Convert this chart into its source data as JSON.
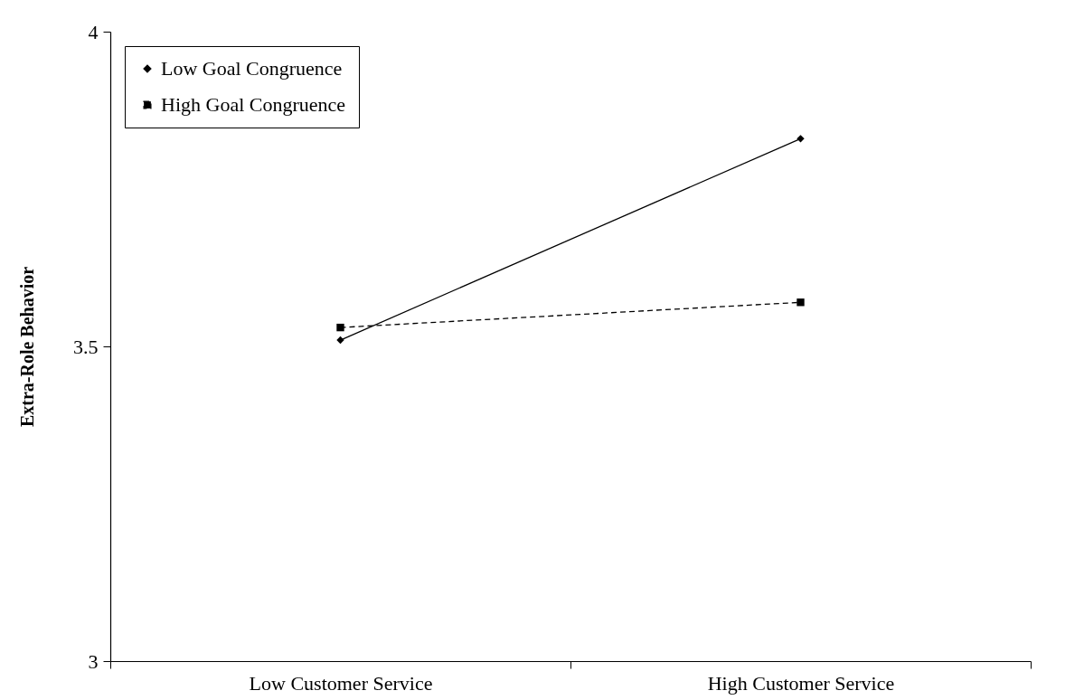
{
  "chart_data": {
    "type": "line",
    "ylabel": "Extra-Role Behavior",
    "categories": [
      "Low Customer Service",
      "High Customer Service"
    ],
    "series": [
      {
        "name": "Low Goal Congruence",
        "color": "#000000",
        "values": [
          3.51,
          3.83
        ],
        "marker": "diamond",
        "line_style": "solid"
      },
      {
        "name": "High Goal Congruence",
        "color": "#000000",
        "values": [
          3.53,
          3.57
        ],
        "marker": "square",
        "line_style": "dashed"
      }
    ],
    "ylim": [
      3,
      4
    ],
    "yticks": [
      3,
      3.5,
      4
    ],
    "grid": false,
    "legend": "top left"
  }
}
